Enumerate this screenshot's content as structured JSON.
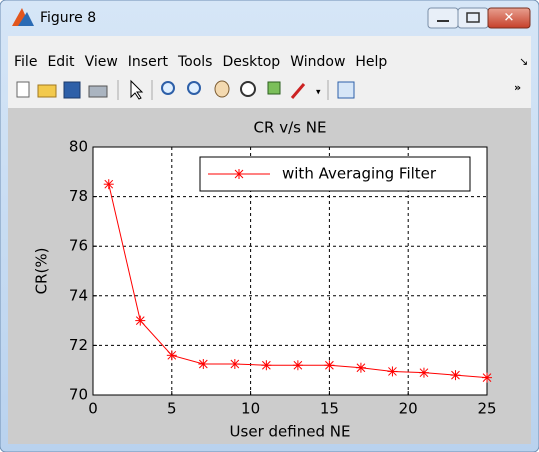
{
  "window": {
    "title": "Figure 8",
    "menu": [
      "File",
      "Edit",
      "View",
      "Insert",
      "Tools",
      "Desktop",
      "Window",
      "Help"
    ]
  },
  "chart_data": {
    "type": "line",
    "title": "CR v/s NE",
    "x_label": "User defined NE",
    "y_label": "CR(%)",
    "x": [
      1,
      3,
      5,
      7,
      9,
      11,
      13,
      15,
      17,
      19,
      21,
      23,
      25
    ],
    "series": [
      {
        "name": "with Averaging Filter",
        "color": "#ff0000",
        "values": [
          78.5,
          73.0,
          71.6,
          71.25,
          71.25,
          71.2,
          71.2,
          71.2,
          71.1,
          70.95,
          70.9,
          70.8,
          70.7
        ]
      }
    ],
    "xlim": [
      0,
      25
    ],
    "xticks": [
      0,
      5,
      10,
      15,
      20,
      25
    ],
    "ylim": [
      70,
      80
    ],
    "yticks": [
      70,
      72,
      74,
      76,
      78,
      80
    ],
    "grid": true,
    "legend": "upper right"
  }
}
